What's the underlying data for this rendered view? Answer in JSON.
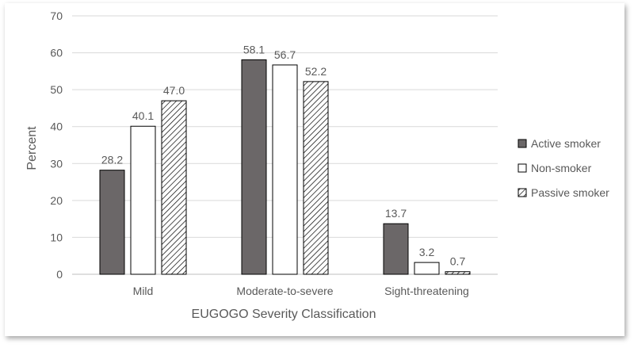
{
  "chart_data": {
    "type": "bar",
    "title": "",
    "xlabel": "EUGOGO Severity Classification",
    "ylabel": "Percent",
    "ylim": [
      0,
      70
    ],
    "yticks": [
      0,
      10,
      20,
      30,
      40,
      50,
      60,
      70
    ],
    "grid": true,
    "legend_position": "right",
    "categories": [
      "Mild",
      "Moderate-to-severe",
      "Sight-threatening"
    ],
    "series": [
      {
        "name": "Active smoker",
        "values": [
          28.2,
          58.1,
          13.7
        ],
        "labels": [
          "28.2",
          "58.1",
          "13.7"
        ],
        "color": "#6b6768",
        "pattern": "solid"
      },
      {
        "name": "Non-smoker",
        "values": [
          40.1,
          56.7,
          3.2
        ],
        "labels": [
          "40.1",
          "56.7",
          "3.2"
        ],
        "color": "#ffffff",
        "pattern": "none"
      },
      {
        "name": "Passive smoker",
        "values": [
          47.0,
          52.2,
          0.7
        ],
        "labels": [
          "47.0",
          "52.2",
          "0.7"
        ],
        "color": "#ffffff",
        "pattern": "diagonal-hatch"
      }
    ]
  }
}
